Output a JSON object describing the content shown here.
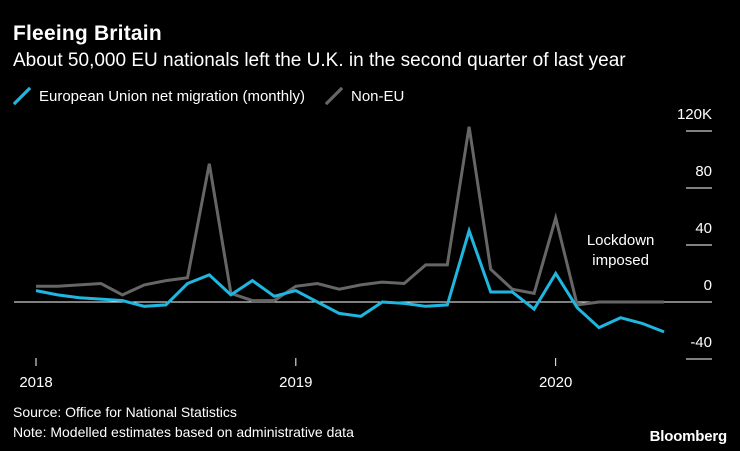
{
  "header": {
    "title": "Fleeing Britain",
    "subtitle": "About 50,000 EU nationals left the U.K. in the second quarter of last year"
  },
  "legend": [
    {
      "label": "European Union net migration (monthly)",
      "color": "#1fb6e0",
      "icon": "line-swatch-icon"
    },
    {
      "label": "Non-EU",
      "color": "#666666",
      "icon": "line-swatch-icon"
    }
  ],
  "footer": {
    "source": "Source: Office for National Statistics",
    "note": "Note: Modelled estimates based on administrative data",
    "brand": "Bloomberg"
  },
  "chart_data": {
    "type": "line",
    "title": "Fleeing Britain",
    "subtitle": "About 50,000 EU nationals left the U.K. in the second quarter of last year",
    "x": [
      2018.0,
      2018.083,
      2018.167,
      2018.25,
      2018.333,
      2018.417,
      2018.5,
      2018.583,
      2018.667,
      2018.75,
      2018.833,
      2018.917,
      2019.0,
      2019.083,
      2019.167,
      2019.25,
      2019.333,
      2019.417,
      2019.5,
      2019.583,
      2019.667,
      2019.75,
      2019.833,
      2019.917,
      2020.0,
      2020.083,
      2020.167,
      2020.25,
      2020.333,
      2020.417
    ],
    "series": [
      {
        "name": "European Union net migration (monthly)",
        "color": "#1fb6e0",
        "values": [
          8,
          5,
          3,
          2,
          1,
          -3,
          -2,
          13,
          19,
          5,
          15,
          4,
          8,
          0,
          -8,
          -10,
          0,
          -1,
          -3,
          -2,
          50,
          7,
          7,
          -5,
          20,
          -4,
          -18,
          -11,
          -15,
          -21
        ]
      },
      {
        "name": "Non-EU",
        "color": "#666666",
        "values": [
          11,
          11,
          12,
          13,
          5,
          12,
          15,
          17,
          97,
          6,
          1,
          1,
          11,
          13,
          9,
          12,
          14,
          13,
          26,
          26,
          123,
          23,
          9,
          6,
          59,
          -2,
          0,
          0,
          0,
          0
        ]
      }
    ],
    "xticks": [
      {
        "value": 2018.0,
        "label": "2018"
      },
      {
        "value": 2019.0,
        "label": "2019"
      },
      {
        "value": 2020.0,
        "label": "2020"
      }
    ],
    "yticks": [
      {
        "value": 120,
        "label": "120K"
      },
      {
        "value": 80,
        "label": "80"
      },
      {
        "value": 40,
        "label": "40"
      },
      {
        "value": 0,
        "label": "0"
      },
      {
        "value": -40,
        "label": "-40"
      }
    ],
    "ylim": [
      -40,
      120
    ],
    "xlim": [
      2018.0,
      2020.417
    ],
    "annotations": [
      {
        "x": 2020.25,
        "y": 40,
        "lines": [
          "Lockdown",
          "imposed"
        ]
      }
    ],
    "xlabel": "",
    "ylabel": "",
    "grid": false,
    "legend_position": "top-left"
  }
}
